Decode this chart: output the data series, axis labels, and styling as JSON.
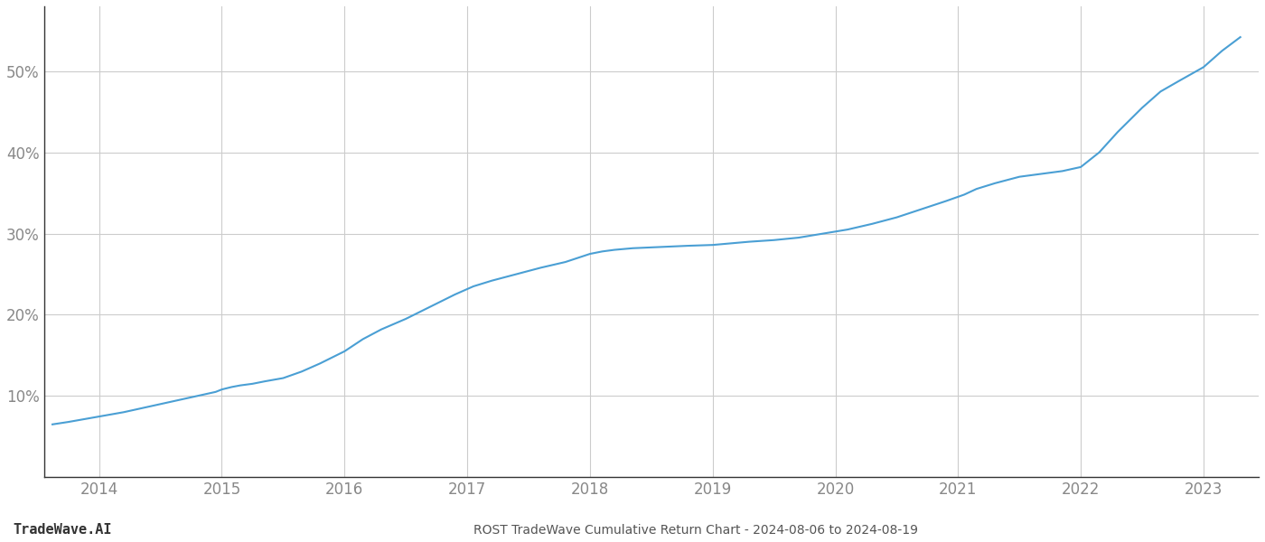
{
  "title": "ROST TradeWave Cumulative Return Chart - 2024-08-06 to 2024-08-19",
  "watermark": "TradeWave.AI",
  "line_color": "#4a9fd4",
  "background_color": "#ffffff",
  "grid_color": "#cccccc",
  "x_years": [
    2014,
    2015,
    2016,
    2017,
    2018,
    2019,
    2020,
    2021,
    2022,
    2023
  ],
  "x_data": [
    2013.62,
    2013.75,
    2013.9,
    2014.05,
    2014.2,
    2014.35,
    2014.5,
    2014.65,
    2014.8,
    2014.95,
    2015.0,
    2015.08,
    2015.15,
    2015.25,
    2015.35,
    2015.5,
    2015.65,
    2015.8,
    2016.0,
    2016.15,
    2016.3,
    2016.5,
    2016.7,
    2016.9,
    2017.05,
    2017.2,
    2017.4,
    2017.6,
    2017.8,
    2018.0,
    2018.1,
    2018.2,
    2018.35,
    2018.5,
    2018.65,
    2018.8,
    2019.0,
    2019.15,
    2019.3,
    2019.5,
    2019.7,
    2019.9,
    2020.1,
    2020.3,
    2020.5,
    2020.7,
    2020.9,
    2021.05,
    2021.15,
    2021.3,
    2021.5,
    2021.7,
    2021.85,
    2022.0,
    2022.15,
    2022.3,
    2022.5,
    2022.65,
    2022.8,
    2023.0,
    2023.15,
    2023.3
  ],
  "y_data": [
    6.5,
    6.8,
    7.2,
    7.6,
    8.0,
    8.5,
    9.0,
    9.5,
    10.0,
    10.5,
    10.8,
    11.1,
    11.3,
    11.5,
    11.8,
    12.2,
    13.0,
    14.0,
    15.5,
    17.0,
    18.2,
    19.5,
    21.0,
    22.5,
    23.5,
    24.2,
    25.0,
    25.8,
    26.5,
    27.5,
    27.8,
    28.0,
    28.2,
    28.3,
    28.4,
    28.5,
    28.6,
    28.8,
    29.0,
    29.2,
    29.5,
    30.0,
    30.5,
    31.2,
    32.0,
    33.0,
    34.0,
    34.8,
    35.5,
    36.2,
    37.0,
    37.4,
    37.7,
    38.2,
    40.0,
    42.5,
    45.5,
    47.5,
    48.8,
    50.5,
    52.5,
    54.2
  ],
  "ylim": [
    0,
    58
  ],
  "yticks": [
    10,
    20,
    30,
    40,
    50
  ],
  "ytick_labels": [
    "10%",
    "20%",
    "30%",
    "40%",
    "50%"
  ],
  "xlim": [
    2013.55,
    2023.45
  ],
  "tick_color": "#888888",
  "title_color": "#555555",
  "watermark_color": "#333333",
  "spine_color": "#333333",
  "title_fontsize": 10,
  "watermark_fontsize": 11,
  "tick_fontsize": 12,
  "line_width": 1.5
}
